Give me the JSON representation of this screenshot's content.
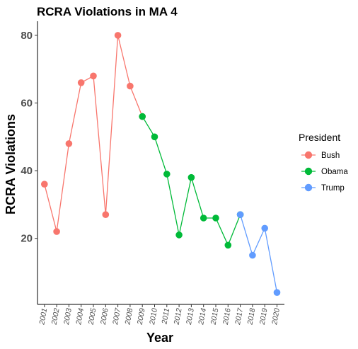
{
  "chart_data": {
    "type": "line",
    "title": "RCRA Violations in MA 4",
    "xlabel": "Year",
    "ylabel": "RCRA Violations",
    "x": [
      "2001",
      "2002",
      "2003",
      "2004",
      "2005",
      "2006",
      "2007",
      "2008",
      "2009",
      "2010",
      "2011",
      "2012",
      "2013",
      "2014",
      "2015",
      "2016",
      "2017",
      "2018",
      "2019",
      "2020"
    ],
    "yticks": [
      20,
      40,
      60,
      80
    ],
    "ylim": [
      0,
      83
    ],
    "grid": false,
    "legend_title": "President",
    "legend_position": "right",
    "series": [
      {
        "name": "Bush",
        "color": "#F8766D",
        "x": [
          "2001",
          "2002",
          "2003",
          "2004",
          "2005",
          "2006",
          "2007",
          "2008",
          "2009"
        ],
        "values": [
          36,
          22,
          48,
          66,
          68,
          27,
          80,
          65,
          56
        ]
      },
      {
        "name": "Obama",
        "color": "#00BA38",
        "x": [
          "2009",
          "2010",
          "2011",
          "2012",
          "2013",
          "2014",
          "2015",
          "2016",
          "2017"
        ],
        "values": [
          56,
          50,
          39,
          21,
          38,
          26,
          26,
          18,
          27
        ]
      },
      {
        "name": "Trump",
        "color": "#619CFF",
        "x": [
          "2017",
          "2018",
          "2019",
          "2020"
        ],
        "values": [
          27,
          15,
          23,
          4
        ]
      }
    ]
  }
}
